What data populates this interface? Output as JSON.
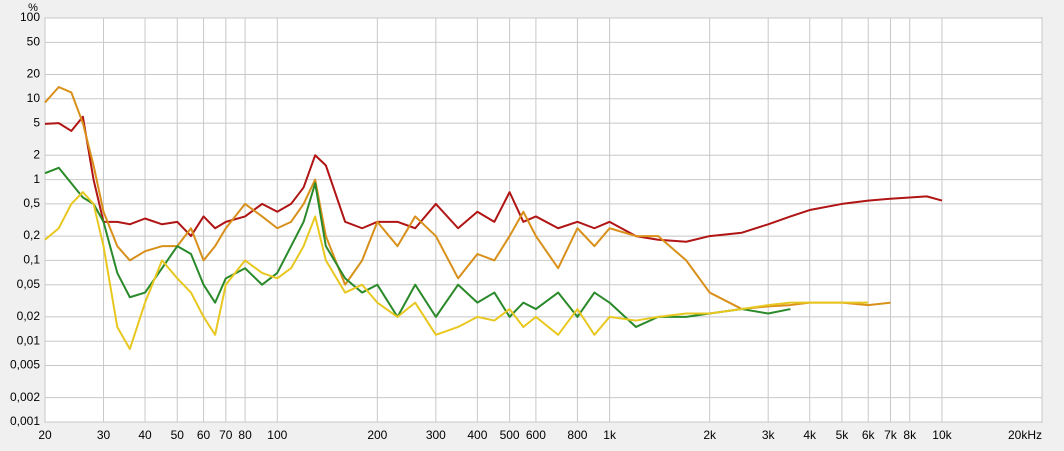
{
  "chart_data": {
    "type": "line",
    "ylabel": "%",
    "log_x": true,
    "log_y": true,
    "grid": true,
    "xlim": [
      20,
      20000
    ],
    "ylim": [
      0.001,
      100
    ],
    "xticks": [
      20,
      30,
      40,
      50,
      60,
      70,
      80,
      100,
      200,
      300,
      400,
      500,
      600,
      800,
      {
        "value": 1000,
        "label": "1k"
      },
      {
        "value": 2000,
        "label": "2k"
      },
      {
        "value": 3000,
        "label": "3k"
      },
      {
        "value": 4000,
        "label": "4k"
      },
      {
        "value": 5000,
        "label": "5k"
      },
      {
        "value": 6000,
        "label": "6k"
      },
      {
        "value": 7000,
        "label": "7k"
      },
      {
        "value": 8000,
        "label": "8k"
      },
      {
        "value": 10000,
        "label": "10k"
      },
      {
        "value": 20000,
        "label": "20kHz"
      }
    ],
    "yticks": [
      100,
      50,
      20,
      10,
      5,
      2,
      1,
      {
        "value": 0.5,
        "label": "0,5"
      },
      {
        "value": 0.2,
        "label": "0,2"
      },
      {
        "value": 0.1,
        "label": "0,1"
      },
      {
        "value": 0.05,
        "label": "0,05"
      },
      {
        "value": 0.02,
        "label": "0,02"
      },
      {
        "value": 0.01,
        "label": "0,01"
      },
      {
        "value": 0.005,
        "label": "0,005"
      },
      {
        "value": 0.002,
        "label": "0,002"
      },
      {
        "value": 0.001,
        "label": "0,001"
      }
    ],
    "x": [
      20,
      22,
      24,
      26,
      28,
      30,
      33,
      36,
      40,
      45,
      50,
      55,
      60,
      65,
      70,
      80,
      90,
      100,
      110,
      120,
      130,
      140,
      160,
      180,
      200,
      230,
      260,
      300,
      350,
      400,
      450,
      500,
      550,
      600,
      700,
      800,
      900,
      1000,
      1200,
      1400,
      1700,
      2000,
      2500,
      3000,
      3500,
      4000,
      5000,
      6000,
      7000,
      8000,
      9000,
      10000
    ],
    "series": [
      {
        "color": "#b01414",
        "values": [
          4.9,
          5,
          4,
          6,
          1,
          0.3,
          0.3,
          0.28,
          0.33,
          0.28,
          0.3,
          0.2,
          0.35,
          0.25,
          0.3,
          0.35,
          0.5,
          0.4,
          0.5,
          0.8,
          2,
          1.5,
          0.3,
          0.25,
          0.3,
          0.3,
          0.25,
          0.5,
          0.25,
          0.4,
          0.3,
          0.7,
          0.3,
          0.35,
          0.25,
          0.3,
          0.25,
          0.3,
          0.2,
          0.18,
          0.17,
          0.2,
          0.22,
          0.28,
          0.35,
          0.42,
          0.5,
          0.55,
          0.58,
          0.6,
          0.62,
          0.55
        ]
      },
      {
        "color": "#d8901a",
        "values": [
          9,
          14,
          12,
          5,
          1.5,
          0.4,
          0.15,
          0.1,
          0.13,
          0.15,
          0.15,
          0.25,
          0.1,
          0.15,
          0.25,
          0.5,
          0.35,
          0.25,
          0.3,
          0.5,
          1,
          0.2,
          0.05,
          0.1,
          0.3,
          0.15,
          0.35,
          0.2,
          0.06,
          0.12,
          0.1,
          0.2,
          0.4,
          0.2,
          0.08,
          0.25,
          0.15,
          0.25,
          0.2,
          0.2,
          0.1,
          0.04,
          0.025,
          0.027,
          0.028,
          0.03,
          0.03,
          0.028,
          0.03,
          null,
          null,
          null
        ]
      },
      {
        "color": "#2a8a2a",
        "values": [
          1.2,
          1.4,
          0.9,
          0.6,
          0.5,
          0.3,
          0.07,
          0.035,
          0.04,
          0.08,
          0.15,
          0.12,
          0.05,
          0.03,
          0.06,
          0.08,
          0.05,
          0.07,
          0.15,
          0.3,
          0.9,
          0.15,
          0.06,
          0.04,
          0.05,
          0.02,
          0.05,
          0.02,
          0.05,
          0.03,
          0.04,
          0.02,
          0.03,
          0.025,
          0.04,
          0.02,
          0.04,
          0.03,
          0.015,
          0.02,
          0.02,
          0.022,
          0.025,
          0.022,
          0.025,
          null,
          null,
          null,
          null,
          null,
          null,
          null
        ]
      },
      {
        "color": "#e8c820",
        "values": [
          0.18,
          0.25,
          0.5,
          0.7,
          0.5,
          0.15,
          0.015,
          0.008,
          0.03,
          0.1,
          0.06,
          0.04,
          0.02,
          0.012,
          0.05,
          0.1,
          0.07,
          0.06,
          0.08,
          0.15,
          0.35,
          0.1,
          0.04,
          0.05,
          0.03,
          0.02,
          0.03,
          0.012,
          0.015,
          0.02,
          0.018,
          0.025,
          0.015,
          0.02,
          0.012,
          0.025,
          0.012,
          0.02,
          0.018,
          0.02,
          0.022,
          0.022,
          0.025,
          0.028,
          0.03,
          0.03,
          0.03,
          0.03,
          null,
          null,
          null,
          null
        ]
      }
    ]
  }
}
